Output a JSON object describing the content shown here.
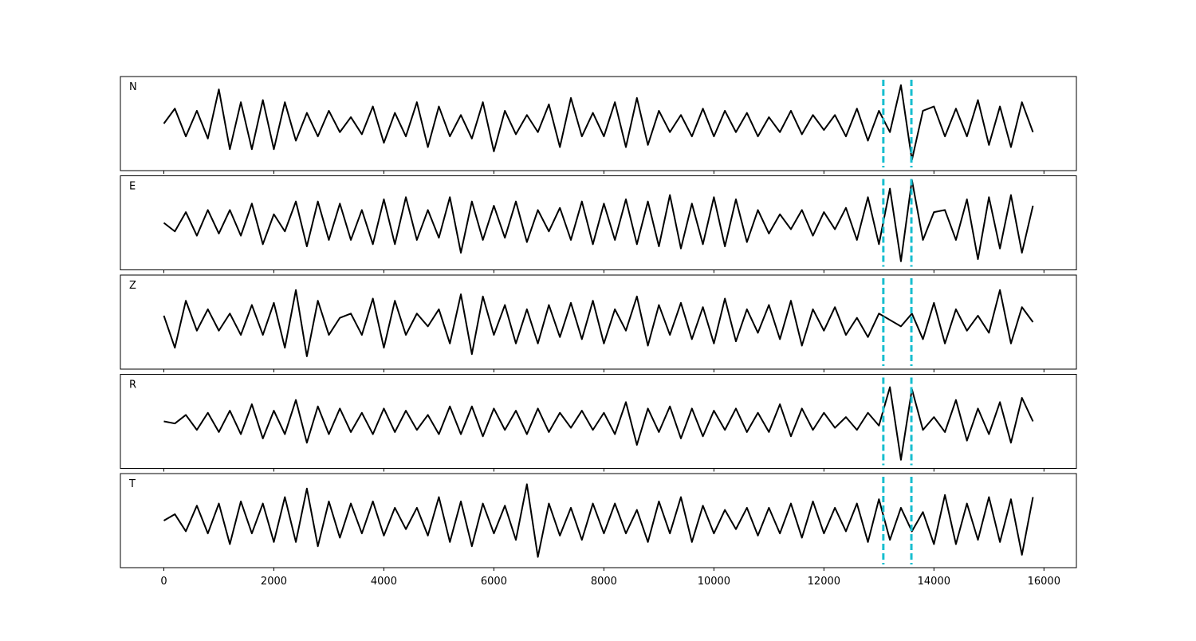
{
  "chart_data": {
    "type": "line",
    "x": [
      0,
      200,
      400,
      600,
      800,
      1000,
      1200,
      1400,
      1600,
      1800,
      2000,
      2200,
      2400,
      2600,
      2800,
      3000,
      3200,
      3400,
      3600,
      3800,
      4000,
      4200,
      4400,
      4600,
      4800,
      5000,
      5200,
      5400,
      5600,
      5800,
      6000,
      6200,
      6400,
      6600,
      6800,
      7000,
      7200,
      7400,
      7600,
      7800,
      8000,
      8200,
      8400,
      8600,
      8800,
      9000,
      9200,
      9400,
      9600,
      9800,
      10000,
      10200,
      10400,
      10600,
      10800,
      11000,
      11200,
      11400,
      11600,
      11800,
      12000,
      12200,
      12400,
      12600,
      12800,
      13000,
      13200,
      13400,
      13600,
      13800,
      14000,
      14200,
      14400,
      14600,
      14800,
      15000,
      15200,
      15400,
      15600,
      15800
    ],
    "series": [
      {
        "name": "N",
        "color": "#000000",
        "values": [
          0,
          0.35,
          -0.3,
          0.3,
          -0.35,
          0.8,
          -0.6,
          0.5,
          -0.6,
          0.55,
          -0.6,
          0.5,
          -0.4,
          0.25,
          -0.3,
          0.3,
          -0.2,
          0.15,
          -0.25,
          0.4,
          -0.45,
          0.25,
          -0.3,
          0.5,
          -0.55,
          0.4,
          -0.3,
          0.2,
          -0.35,
          0.5,
          -0.65,
          0.3,
          -0.25,
          0.2,
          -0.2,
          0.45,
          -0.55,
          0.6,
          -0.3,
          0.25,
          -0.3,
          0.5,
          -0.55,
          0.6,
          -0.5,
          0.3,
          -0.2,
          0.2,
          -0.3,
          0.35,
          -0.3,
          0.3,
          -0.2,
          0.25,
          -0.3,
          0.15,
          -0.2,
          0.3,
          -0.25,
          0.2,
          -0.15,
          0.2,
          -0.3,
          0.35,
          -0.4,
          0.3,
          -0.2,
          0.9,
          -0.85,
          0.3,
          0.4,
          -0.3,
          0.35,
          -0.3,
          0.55,
          -0.5,
          0.4,
          -0.55,
          0.5,
          -0.2
        ]
      },
      {
        "name": "E",
        "color": "#000000",
        "values": [
          0,
          -0.2,
          0.25,
          -0.3,
          0.3,
          -0.25,
          0.3,
          -0.3,
          0.45,
          -0.5,
          0.2,
          -0.2,
          0.5,
          -0.55,
          0.5,
          -0.4,
          0.45,
          -0.4,
          0.3,
          -0.5,
          0.55,
          -0.5,
          0.6,
          -0.4,
          0.3,
          -0.35,
          0.6,
          -0.7,
          0.5,
          -0.4,
          0.4,
          -0.35,
          0.5,
          -0.45,
          0.3,
          -0.2,
          0.35,
          -0.4,
          0.5,
          -0.5,
          0.45,
          -0.4,
          0.55,
          -0.5,
          0.5,
          -0.55,
          0.65,
          -0.6,
          0.45,
          -0.5,
          0.6,
          -0.55,
          0.55,
          -0.45,
          0.3,
          -0.25,
          0.2,
          -0.15,
          0.3,
          -0.3,
          0.25,
          -0.15,
          0.35,
          -0.4,
          0.6,
          -0.5,
          0.8,
          -0.9,
          1.0,
          -0.4,
          0.25,
          0.3,
          -0.4,
          0.55,
          -0.85,
          0.6,
          -0.6,
          0.65,
          -0.7,
          0.4
        ]
      },
      {
        "name": "Z",
        "color": "#000000",
        "values": [
          0.15,
          -0.6,
          0.5,
          -0.2,
          0.3,
          -0.2,
          0.2,
          -0.3,
          0.4,
          -0.3,
          0.45,
          -0.6,
          0.75,
          -0.8,
          0.5,
          -0.3,
          0.1,
          0.2,
          -0.3,
          0.55,
          -0.6,
          0.5,
          -0.3,
          0.2,
          -0.1,
          0.3,
          -0.5,
          0.65,
          -0.75,
          0.6,
          -0.3,
          0.4,
          -0.5,
          0.3,
          -0.5,
          0.4,
          -0.35,
          0.45,
          -0.4,
          0.5,
          -0.5,
          0.3,
          -0.2,
          0.6,
          -0.55,
          0.4,
          -0.3,
          0.45,
          -0.4,
          0.35,
          -0.5,
          0.55,
          -0.45,
          0.3,
          -0.25,
          0.4,
          -0.4,
          0.5,
          -0.55,
          0.3,
          -0.2,
          0.35,
          -0.3,
          0.1,
          -0.35,
          0.2,
          0.05,
          -0.1,
          0.2,
          -0.4,
          0.45,
          -0.5,
          0.3,
          -0.2,
          0.15,
          -0.25,
          0.75,
          -0.5,
          0.35,
          0
        ]
      },
      {
        "name": "R",
        "color": "#000000",
        "values": [
          0,
          -0.05,
          0.15,
          -0.2,
          0.2,
          -0.25,
          0.25,
          -0.3,
          0.4,
          -0.4,
          0.25,
          -0.3,
          0.5,
          -0.5,
          0.35,
          -0.3,
          0.3,
          -0.25,
          0.2,
          -0.3,
          0.3,
          -0.25,
          0.25,
          -0.2,
          0.15,
          -0.3,
          0.35,
          -0.3,
          0.35,
          -0.35,
          0.3,
          -0.2,
          0.25,
          -0.3,
          0.3,
          -0.25,
          0.2,
          -0.15,
          0.25,
          -0.2,
          0.2,
          -0.3,
          0.45,
          -0.55,
          0.3,
          -0.25,
          0.35,
          -0.4,
          0.3,
          -0.35,
          0.25,
          -0.2,
          0.3,
          -0.25,
          0.2,
          -0.25,
          0.4,
          -0.35,
          0.3,
          -0.2,
          0.2,
          -0.15,
          0.1,
          -0.2,
          0.2,
          -0.1,
          0.8,
          -0.9,
          0.75,
          -0.2,
          0.1,
          -0.25,
          0.5,
          -0.45,
          0.3,
          -0.3,
          0.45,
          -0.5,
          0.55,
          0
        ]
      },
      {
        "name": "T",
        "color": "#000000",
        "values": [
          0,
          0.15,
          -0.25,
          0.35,
          -0.3,
          0.4,
          -0.55,
          0.45,
          -0.3,
          0.4,
          -0.5,
          0.55,
          -0.5,
          0.75,
          -0.6,
          0.45,
          -0.4,
          0.4,
          -0.3,
          0.45,
          -0.35,
          0.3,
          -0.2,
          0.3,
          -0.35,
          0.55,
          -0.5,
          0.45,
          -0.6,
          0.4,
          -0.3,
          0.35,
          -0.45,
          0.85,
          -0.85,
          0.4,
          -0.35,
          0.3,
          -0.45,
          0.4,
          -0.3,
          0.4,
          -0.3,
          0.25,
          -0.5,
          0.45,
          -0.3,
          0.55,
          -0.5,
          0.35,
          -0.3,
          0.25,
          -0.2,
          0.3,
          -0.35,
          0.3,
          -0.3,
          0.4,
          -0.4,
          0.45,
          -0.3,
          0.3,
          -0.25,
          0.4,
          -0.5,
          0.5,
          -0.45,
          0.3,
          -0.25,
          0.2,
          -0.55,
          0.6,
          -0.55,
          0.4,
          -0.45,
          0.55,
          -0.5,
          0.5,
          -0.8,
          0.55
        ]
      }
    ],
    "markers": {
      "x": [
        13080,
        13590
      ],
      "color": "#17becf"
    },
    "xlim": [
      -790,
      16590
    ],
    "xticks": [
      0,
      2000,
      4000,
      6000,
      8000,
      10000,
      12000,
      14000,
      16000
    ],
    "ylim": [
      -1.1,
      1.1
    ]
  }
}
